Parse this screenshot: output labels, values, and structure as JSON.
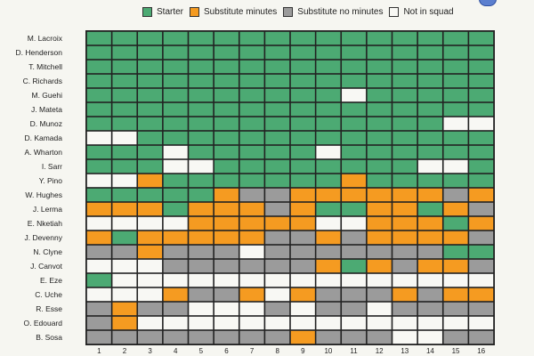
{
  "legend": [
    {
      "key": "S",
      "label": "Starter",
      "color": "#4caa73"
    },
    {
      "key": "O",
      "label": "Substitute minutes",
      "color": "#f59b21"
    },
    {
      "key": "G",
      "label": "Substitute no minutes",
      "color": "#9b9b9b"
    },
    {
      "key": "W",
      "label": "Not in squad",
      "color": "#f8f8f4"
    }
  ],
  "chart_data": {
    "type": "heatmap",
    "title": "",
    "xlabel": "",
    "ylabel": "",
    "x": [
      "1",
      "2",
      "3",
      "4",
      "5",
      "6",
      "7",
      "8",
      "9",
      "10",
      "11",
      "12",
      "13",
      "14",
      "15",
      "16"
    ],
    "legend_placement": "top",
    "categories_legend": {
      "S": "Starter",
      "O": "Substitute minutes",
      "G": "Substitute no minutes",
      "W": "Not in squad"
    },
    "rows": [
      {
        "name": "M. Lacroix",
        "values": "SSSSSSSSSSSSSSSS"
      },
      {
        "name": "D. Henderson",
        "values": "SSSSSSSSSSSSSSSS"
      },
      {
        "name": "T. Mitchell",
        "values": "SSSSSSSSSSSSSSSS"
      },
      {
        "name": "C. Richards",
        "values": "SSSSSSSSSSSSSSSS"
      },
      {
        "name": "M. Guehi",
        "values": "SSSSSSSSSSWSSSSS"
      },
      {
        "name": "J. Mateta",
        "values": "SSSSSSSSSSSSSSSS"
      },
      {
        "name": "D. Munoz",
        "values": "SSSSSSSSSSSSSSWW"
      },
      {
        "name": "D. Kamada",
        "values": "WWSSSSSSSSSSSSSS"
      },
      {
        "name": "A. Wharton",
        "values": "SSSWSSSSSWSSSSSS"
      },
      {
        "name": "I. Sarr",
        "values": "SSSWWSSSSSSSSWWS"
      },
      {
        "name": "Y. Pino",
        "values": "WWOSSSSSSSOSSSSS"
      },
      {
        "name": "W. Hughes",
        "values": "SSSSSOGGOOOOOOGO"
      },
      {
        "name": "J. Lerma",
        "values": "OOOSOOOGOSSOOSOG"
      },
      {
        "name": "E. Nketiah",
        "values": "WWWWOOOOOWWOOOSO"
      },
      {
        "name": "J. Devenny",
        "values": "OSOOOOOGGOGOOOOG"
      },
      {
        "name": "N. Clyne",
        "values": "GGOGGGWGGGGGGGSS"
      },
      {
        "name": "J. Canvot",
        "values": "WWWGGGGGGOSOGOOG"
      },
      {
        "name": "E. Eze",
        "values": "SWWWWWWWWWWWWWWW"
      },
      {
        "name": "C. Uche",
        "values": "WWWOGGOWOGGGOGOO"
      },
      {
        "name": "R. Esse",
        "values": "GOGGWWWGWGGWGGGG"
      },
      {
        "name": "O. Edouard",
        "values": "GOWWWWWWWWWWWWWW"
      },
      {
        "name": "B. Sosa",
        "values": "GGGGGGGGOGGGWWGG"
      }
    ]
  }
}
